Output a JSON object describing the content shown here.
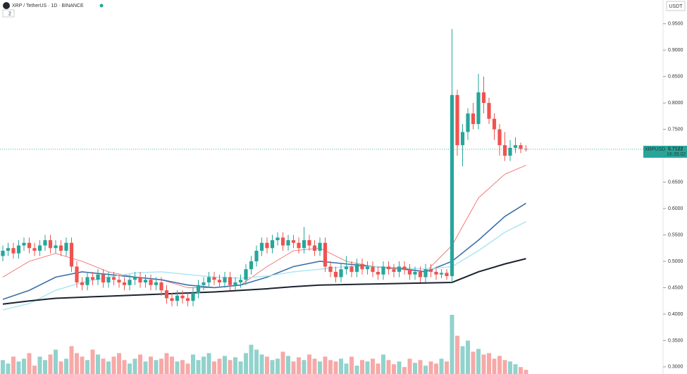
{
  "header": {
    "symbol": "XRP / TetherUS · 1D · BINANCE",
    "indicators": "2",
    "currency": "USDT"
  },
  "price_label": {
    "ticker": "XRPUSDT",
    "countdown": "16:35:02"
  },
  "chart_data": {
    "type": "candlestick",
    "up_color": "#26a69a",
    "down_color": "#ef5350",
    "ylim": [
      0.2865,
      0.995
    ],
    "yticks": [
      {
        "value": 0.3,
        "label": "0.3000"
      },
      {
        "value": 0.35,
        "label": "0.3500"
      },
      {
        "value": 0.4,
        "label": "0.4000"
      },
      {
        "value": 0.45,
        "label": "0.4500"
      },
      {
        "value": 0.5,
        "label": "0.5000"
      },
      {
        "value": 0.55,
        "label": "0.5500"
      },
      {
        "value": 0.6,
        "label": "0.6000"
      },
      {
        "value": 0.65,
        "label": "0.6500"
      },
      {
        "value": 0.7,
        "label": "0.7000"
      },
      {
        "value": 0.75,
        "label": "0.7500"
      },
      {
        "value": 0.8,
        "label": "0.8000"
      },
      {
        "value": 0.85,
        "label": "0.8500"
      },
      {
        "value": 0.9,
        "label": "0.9000"
      },
      {
        "value": 0.95,
        "label": "0.9500"
      }
    ],
    "open": [
      0.51,
      0.52,
      0.525,
      0.515,
      0.53,
      0.535,
      0.525,
      0.52,
      0.53,
      0.54,
      0.525,
      0.53,
      0.52,
      0.535,
      0.49,
      0.46,
      0.455,
      0.47,
      0.465,
      0.475,
      0.46,
      0.47,
      0.465,
      0.46,
      0.455,
      0.465,
      0.47,
      0.46,
      0.465,
      0.455,
      0.46,
      0.445,
      0.43,
      0.425,
      0.435,
      0.43,
      0.425,
      0.44,
      0.455,
      0.46,
      0.47,
      0.465,
      0.46,
      0.47,
      0.455,
      0.46,
      0.465,
      0.485,
      0.5,
      0.52,
      0.535,
      0.525,
      0.54,
      0.545,
      0.53,
      0.54,
      0.535,
      0.525,
      0.54,
      0.53,
      0.52,
      0.535,
      0.49,
      0.48,
      0.47,
      0.485,
      0.49,
      0.48,
      0.495,
      0.485,
      0.49,
      0.48,
      0.475,
      0.49,
      0.485,
      0.48,
      0.49,
      0.485,
      0.475,
      0.48,
      0.47,
      0.485,
      0.48,
      0.475,
      0.478,
      0.472,
      0.815,
      0.72,
      0.745,
      0.78,
      0.76,
      0.82,
      0.8,
      0.77,
      0.75,
      0.72,
      0.7,
      0.715,
      0.72,
      0.713
    ],
    "high": [
      0.53,
      0.535,
      0.535,
      0.54,
      0.545,
      0.545,
      0.535,
      0.54,
      0.55,
      0.55,
      0.54,
      0.54,
      0.545,
      0.545,
      0.5,
      0.47,
      0.48,
      0.48,
      0.485,
      0.485,
      0.48,
      0.48,
      0.475,
      0.47,
      0.475,
      0.48,
      0.48,
      0.475,
      0.475,
      0.47,
      0.47,
      0.455,
      0.44,
      0.445,
      0.445,
      0.44,
      0.45,
      0.465,
      0.47,
      0.48,
      0.48,
      0.475,
      0.48,
      0.48,
      0.47,
      0.475,
      0.495,
      0.51,
      0.53,
      0.545,
      0.545,
      0.55,
      0.555,
      0.555,
      0.55,
      0.55,
      0.545,
      0.565,
      0.55,
      0.54,
      0.545,
      0.545,
      0.5,
      0.49,
      0.495,
      0.51,
      0.5,
      0.505,
      0.505,
      0.5,
      0.5,
      0.49,
      0.5,
      0.5,
      0.495,
      0.5,
      0.5,
      0.495,
      0.49,
      0.49,
      0.495,
      0.495,
      0.49,
      0.485,
      0.485,
      0.94,
      0.825,
      0.76,
      0.79,
      0.8,
      0.855,
      0.85,
      0.81,
      0.78,
      0.76,
      0.745,
      0.73,
      0.735,
      0.725,
      0.72
    ],
    "low": [
      0.5,
      0.51,
      0.505,
      0.505,
      0.52,
      0.515,
      0.51,
      0.51,
      0.52,
      0.515,
      0.515,
      0.51,
      0.51,
      0.48,
      0.45,
      0.445,
      0.445,
      0.455,
      0.455,
      0.45,
      0.45,
      0.455,
      0.45,
      0.445,
      0.445,
      0.455,
      0.45,
      0.45,
      0.445,
      0.445,
      0.435,
      0.42,
      0.415,
      0.415,
      0.42,
      0.415,
      0.415,
      0.43,
      0.445,
      0.45,
      0.455,
      0.45,
      0.45,
      0.445,
      0.445,
      0.45,
      0.455,
      0.475,
      0.49,
      0.51,
      0.515,
      0.515,
      0.53,
      0.52,
      0.52,
      0.525,
      0.515,
      0.515,
      0.52,
      0.51,
      0.51,
      0.48,
      0.47,
      0.46,
      0.46,
      0.475,
      0.47,
      0.47,
      0.475,
      0.475,
      0.47,
      0.465,
      0.465,
      0.475,
      0.47,
      0.47,
      0.475,
      0.465,
      0.465,
      0.46,
      0.46,
      0.47,
      0.465,
      0.468,
      0.465,
      0.46,
      0.7,
      0.68,
      0.73,
      0.75,
      0.75,
      0.78,
      0.76,
      0.73,
      0.7,
      0.69,
      0.69,
      0.705,
      0.705,
      0.708
    ],
    "close": [
      0.52,
      0.525,
      0.515,
      0.53,
      0.535,
      0.525,
      0.52,
      0.53,
      0.54,
      0.525,
      0.53,
      0.52,
      0.535,
      0.49,
      0.46,
      0.455,
      0.47,
      0.465,
      0.475,
      0.46,
      0.47,
      0.465,
      0.46,
      0.455,
      0.465,
      0.47,
      0.46,
      0.465,
      0.455,
      0.46,
      0.445,
      0.43,
      0.425,
      0.435,
      0.43,
      0.425,
      0.44,
      0.455,
      0.46,
      0.47,
      0.465,
      0.46,
      0.47,
      0.455,
      0.46,
      0.465,
      0.485,
      0.5,
      0.52,
      0.535,
      0.525,
      0.54,
      0.545,
      0.53,
      0.54,
      0.535,
      0.525,
      0.54,
      0.53,
      0.52,
      0.535,
      0.49,
      0.48,
      0.47,
      0.485,
      0.49,
      0.48,
      0.495,
      0.485,
      0.49,
      0.48,
      0.475,
      0.49,
      0.485,
      0.48,
      0.49,
      0.485,
      0.475,
      0.48,
      0.47,
      0.485,
      0.48,
      0.475,
      0.478,
      0.472,
      0.815,
      0.72,
      0.745,
      0.78,
      0.76,
      0.82,
      0.8,
      0.77,
      0.75,
      0.72,
      0.7,
      0.715,
      0.72,
      0.713,
      0.7122
    ],
    "volume": [
      20,
      15,
      25,
      18,
      22,
      30,
      12,
      25,
      20,
      28,
      35,
      18,
      22,
      40,
      30,
      25,
      20,
      35,
      28,
      22,
      18,
      25,
      30,
      20,
      15,
      22,
      28,
      18,
      25,
      20,
      22,
      30,
      25,
      18,
      20,
      15,
      28,
      20,
      25,
      30,
      18,
      22,
      26,
      20,
      24,
      18,
      30,
      42,
      35,
      28,
      25,
      20,
      22,
      32,
      26,
      18,
      24,
      20,
      28,
      22,
      18,
      25,
      20,
      18,
      22,
      15,
      25,
      12,
      20,
      18,
      22,
      15,
      28,
      20,
      14,
      18,
      10,
      22,
      16,
      20,
      12,
      18,
      15,
      22,
      18,
      85,
      55,
      40,
      48,
      32,
      36,
      28,
      30,
      22,
      26,
      20,
      18,
      14,
      10,
      6
    ],
    "ma_x": [
      0,
      5,
      10,
      15,
      20,
      25,
      30,
      35,
      40,
      45,
      50,
      55,
      60,
      65,
      70,
      75,
      80,
      85,
      90,
      95,
      99
    ],
    "series": [
      {
        "color": "#f06060",
        "width": 0.8,
        "values": [
          0.47,
          0.5,
          0.515,
          0.5,
          0.48,
          0.47,
          0.465,
          0.45,
          0.45,
          0.455,
          0.49,
          0.52,
          0.525,
          0.5,
          0.49,
          0.485,
          0.48,
          0.53,
          0.62,
          0.665,
          0.682
        ]
      },
      {
        "color": "#3d6fa8",
        "width": 1.6,
        "values": [
          0.428,
          0.445,
          0.47,
          0.48,
          0.475,
          0.47,
          0.465,
          0.455,
          0.45,
          0.455,
          0.47,
          0.49,
          0.5,
          0.495,
          0.49,
          0.487,
          0.48,
          0.5,
          0.54,
          0.585,
          0.61
        ]
      },
      {
        "color": "#a8e6f0",
        "width": 1.4,
        "values": [
          0.408,
          0.42,
          0.445,
          0.46,
          0.47,
          0.478,
          0.48,
          0.475,
          0.47,
          0.468,
          0.472,
          0.48,
          0.485,
          0.49,
          0.49,
          0.488,
          0.485,
          0.49,
          0.52,
          0.555,
          0.575
        ]
      },
      {
        "color": "#1c2230",
        "width": 2,
        "values": [
          0.419,
          0.425,
          0.43,
          0.432,
          0.434,
          0.436,
          0.438,
          0.44,
          0.442,
          0.445,
          0.448,
          0.452,
          0.455,
          0.456,
          0.457,
          0.458,
          0.459,
          0.46,
          0.48,
          0.495,
          0.505
        ]
      }
    ]
  }
}
